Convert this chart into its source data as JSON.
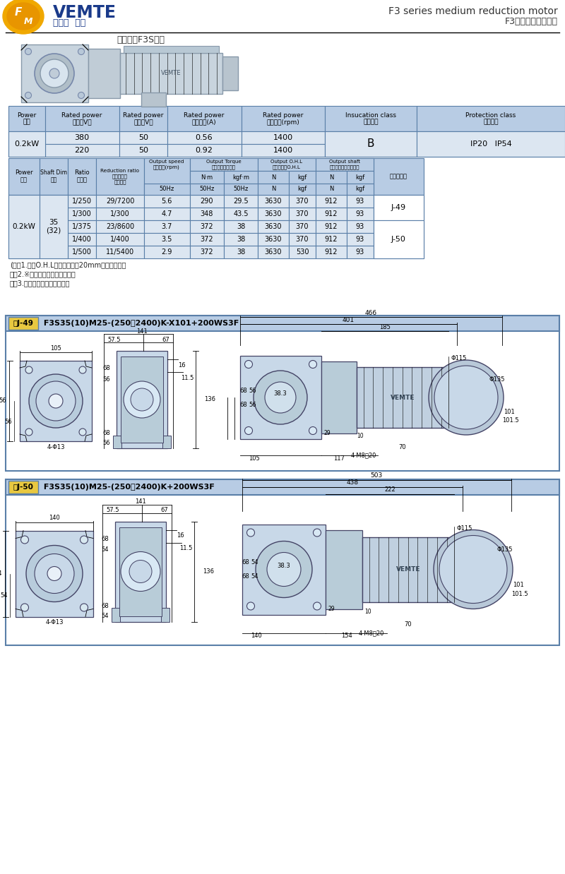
{
  "title_en": "F3 series medium reduction motor",
  "title_zh": "F3系列中型減速電機",
  "subtitle": "同心中空F3S系列",
  "bg_color": "#ffffff",
  "table_header_bg": "#b8cce4",
  "table_data_bg": "#dce6f1",
  "table_border": "#5a7fa8",
  "note_lines": [
    "(注）1.容許O.H.L為輸出軸端面20mm位置的數値。",
    "　　2.※標記為轉矩力受限機型。",
    "　　3.括號（）為實心軸軸徑。"
  ],
  "diag1_title_box": "圖J-49",
  "diag1_title_text": " F3S35(10)M25-(250＾2400)K-X101+200WS3F",
  "diag2_title_box": "圖J-50",
  "diag2_title_text": " F3S35(10)M25-(250＾2400)K+200WS3F"
}
